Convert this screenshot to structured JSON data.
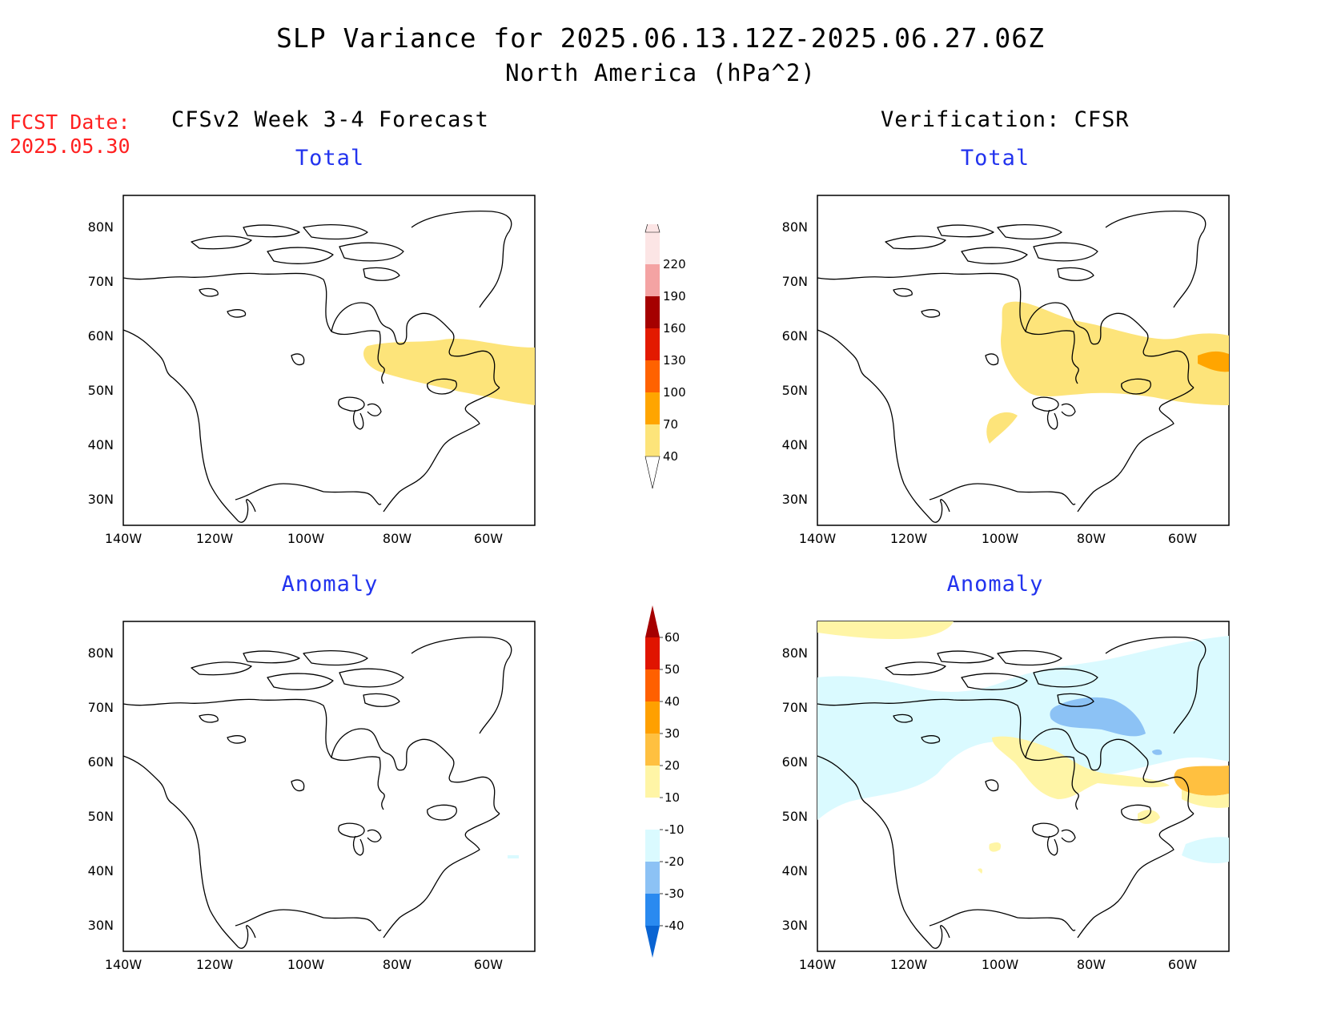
{
  "title_line1": "SLP Variance for 2025.06.13.12Z-2025.06.27.06Z",
  "title_line2": "North America (hPa^2)",
  "fcst_date_label": "FCST Date:",
  "fcst_date_value": "2025.05.30",
  "columns": {
    "left": "CFSv2 Week 3-4 Forecast",
    "right": "Verification: CFSR"
  },
  "panels": {
    "forecast_total": "Total",
    "forecast_anomaly": "Anomaly",
    "verify_total": "Total",
    "verify_anomaly": "Anomaly"
  },
  "axes": {
    "lat_labels": [
      "30N",
      "40N",
      "50N",
      "60N",
      "70N",
      "80N"
    ],
    "lon_labels": [
      "140W",
      "120W",
      "100W",
      "80W",
      "60W"
    ]
  },
  "colorbars": {
    "total": {
      "levels": [
        "40",
        "70",
        "100",
        "130",
        "160",
        "190",
        "220"
      ],
      "colors": [
        "#fde47a",
        "#ffa500",
        "#ff6200",
        "#e31a00",
        "#a50000",
        "#f4a3a3",
        "#fce5e5"
      ]
    },
    "anomaly": {
      "levels": [
        "-40",
        "-30",
        "-20",
        "-10",
        "10",
        "20",
        "30",
        "40",
        "50",
        "60"
      ],
      "colors": [
        "#0a64d2",
        "#2a8af0",
        "#8cc2f5",
        "#dafaff",
        "#ffffff",
        "#fff5a6",
        "#ffc040",
        "#ffa000",
        "#ff6000",
        "#e01400",
        "#a50000"
      ]
    }
  }
}
